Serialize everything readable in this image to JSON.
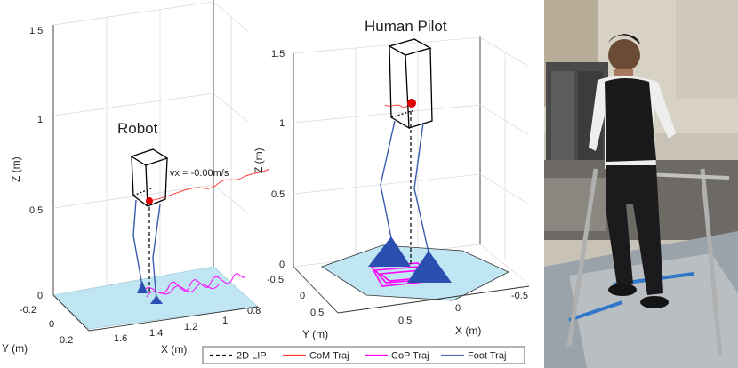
{
  "robot_panel": {
    "title": "Robot",
    "velocity_label": "vx = -0.00m/s",
    "z_axis_label": "Z (m)",
    "x_axis_label": "X (m)",
    "y_axis_label": "Y (m)",
    "z_ticks": [
      "1.5",
      "1",
      "0.5",
      "0"
    ],
    "x_ticks": [
      "1.6",
      "1.4",
      "1.2",
      "1",
      "0.8"
    ],
    "y_ticks": [
      "-0.2",
      "0",
      "0.2"
    ]
  },
  "pilot_panel": {
    "title": "Human Pilot",
    "z_axis_label": "Z (m)",
    "x_axis_label": "X (m)",
    "y_axis_label": "Y (m)",
    "z_ticks": [
      "1.5",
      "1",
      "0.5",
      "0"
    ],
    "x_ticks": [
      "0.5",
      "0",
      "-0.5"
    ],
    "y_ticks": [
      "-0.5",
      "0",
      "0.5"
    ]
  },
  "legend": {
    "items": [
      {
        "label": "2D LIP",
        "color": "#000000",
        "dash": true
      },
      {
        "label": "CoM Traj",
        "color": "#ff3b3b",
        "dash": false
      },
      {
        "label": "CoP Traj",
        "color": "#ff00ff",
        "dash": false
      },
      {
        "label": "Foot Traj",
        "color": "#4a6fb5",
        "dash": false
      }
    ]
  },
  "colors": {
    "ground": "#bfe6f2",
    "foot": "#2a4fb0",
    "com_marker": "#e00000"
  },
  "photo": {
    "description_icon": "person-on-platform-photo"
  }
}
